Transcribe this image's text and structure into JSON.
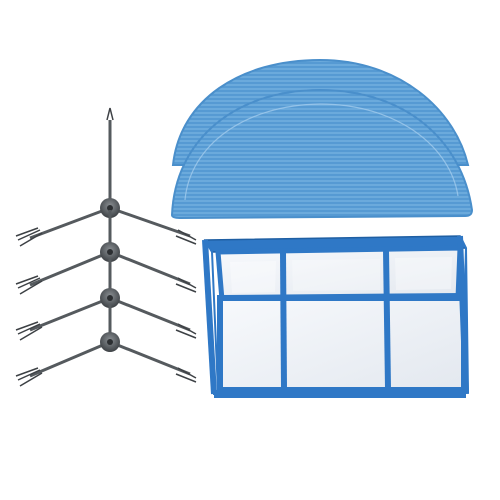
{
  "image": {
    "background": "#ffffff",
    "subjects": [
      {
        "name": "mop-pad",
        "count": 2,
        "color": "#5b9fd6"
      },
      {
        "name": "side-brush",
        "count": 4,
        "color": "#555a5e"
      },
      {
        "name": "hepa-filter",
        "count": 1,
        "color": "#2f78c6",
        "mesh_color": "#eef1f5"
      }
    ]
  }
}
